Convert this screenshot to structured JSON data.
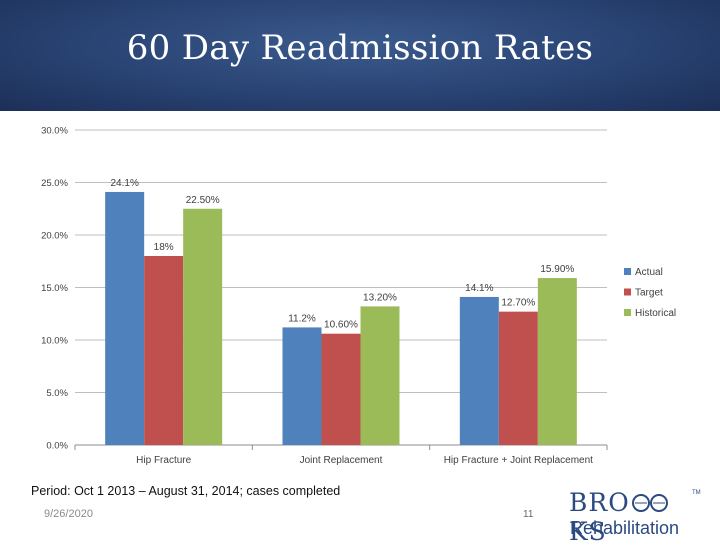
{
  "slide": {
    "title": "60 Day Readmission Rates",
    "footnote": "Period: Oct 1 2013 – August 31, 2014; cases completed",
    "date": "9/26/2020",
    "page_number": "11"
  },
  "logo": {
    "brand_left": "BRO",
    "brand_right": "KS",
    "tm": "TM",
    "sub": "Rehabilitation",
    "color": "#2b4a80"
  },
  "chart_data": {
    "type": "bar",
    "categories": [
      "Hip Fracture",
      "Joint Replacement",
      "Hip Fracture + Joint Replacement"
    ],
    "series": [
      {
        "name": "Actual",
        "color": "#4f81bd",
        "values": [
          24.1,
          11.2,
          14.1
        ],
        "labels": [
          "24.1%",
          "11.2%",
          "14.1%"
        ]
      },
      {
        "name": "Target",
        "color": "#c0504d",
        "values": [
          18,
          10.6,
          12.7
        ],
        "labels": [
          "18%",
          "10.60%",
          "12.70%"
        ]
      },
      {
        "name": "Historical",
        "color": "#9bbb59",
        "values": [
          22.5,
          13.2,
          15.9
        ],
        "labels": [
          "22.50%",
          "13.20%",
          "15.90%"
        ]
      }
    ],
    "ylim": [
      0,
      30
    ],
    "yticks": [
      0,
      5,
      10,
      15,
      20,
      25,
      30
    ],
    "ytick_labels": [
      "0.0%",
      "5.0%",
      "10.0%",
      "15.0%",
      "20.0%",
      "25.0%",
      "30.0%"
    ],
    "grid": true,
    "legend_position": "right"
  }
}
